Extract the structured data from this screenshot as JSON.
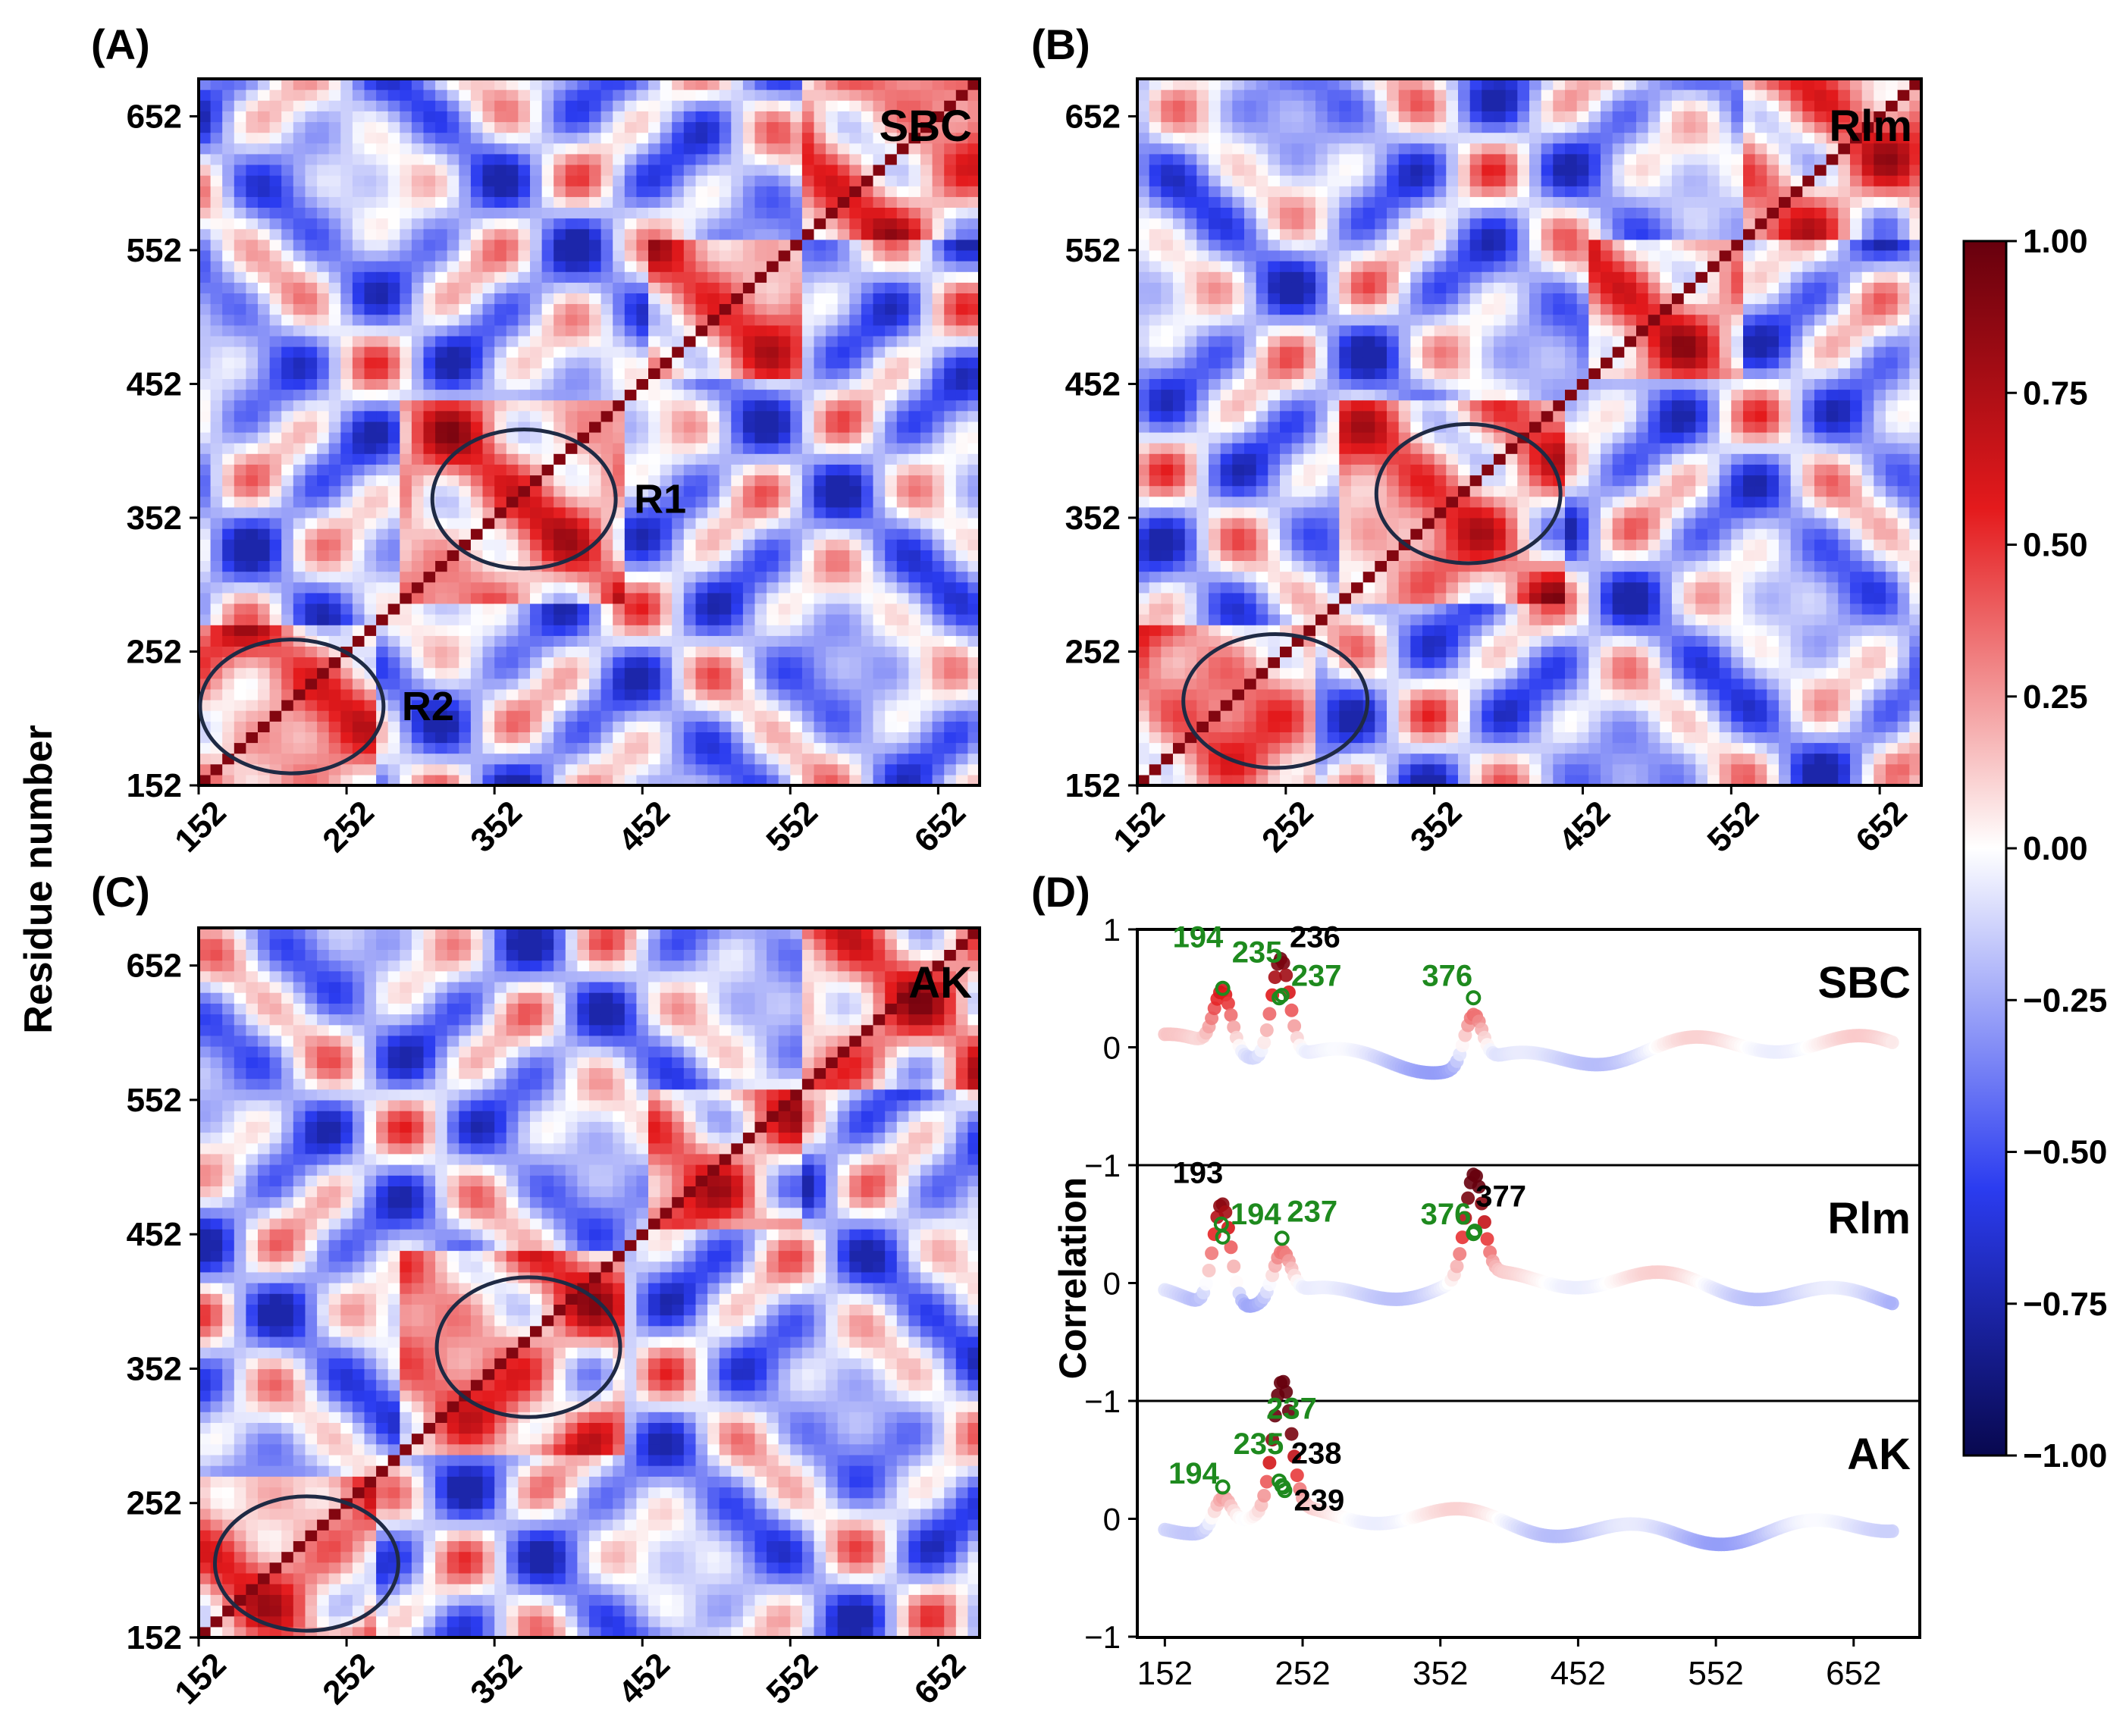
{
  "figure": {
    "y_axis_label": "Residue number",
    "d_axis_label": "Correlation",
    "colorbar": {
      "ticks": [
        "1.00",
        "0.75",
        "0.50",
        "0.25",
        "0.00",
        "−0.25",
        "−0.50",
        "−0.75",
        "−1.00"
      ],
      "colors": {
        "max": "#67000d",
        "pos": "#e41a1c",
        "zero": "#ffffff",
        "neg": "#2b3cf0",
        "min": "#08084f"
      }
    }
  },
  "chart_data": [
    {
      "panel": "(A)",
      "type": "heatmap",
      "title": "SBC",
      "ticks": [
        "152",
        "252",
        "352",
        "452",
        "552",
        "652"
      ],
      "range": [
        152,
        680
      ],
      "clim": [
        -1,
        1
      ],
      "regions": [
        {
          "label": "R1",
          "center": [
            372,
            366
          ],
          "rx": 62,
          "ry": 52
        },
        {
          "label": "R2",
          "center": [
            215,
            211
          ],
          "rx": 62,
          "ry": 50
        }
      ]
    },
    {
      "panel": "(B)",
      "type": "heatmap",
      "title": "Rlm",
      "ticks": [
        "152",
        "252",
        "352",
        "452",
        "552",
        "652"
      ],
      "range": [
        152,
        680
      ],
      "clim": [
        -1,
        1
      ],
      "regions": [
        {
          "label": "",
          "center": [
            375,
            370
          ],
          "rx": 62,
          "ry": 52
        },
        {
          "label": "",
          "center": [
            245,
            215
          ],
          "rx": 62,
          "ry": 50
        }
      ]
    },
    {
      "panel": "(C)",
      "type": "heatmap",
      "title": "AK",
      "ticks": [
        "152",
        "252",
        "352",
        "452",
        "552",
        "652"
      ],
      "range": [
        152,
        680
      ],
      "clim": [
        -1,
        1
      ],
      "regions": [
        {
          "label": "",
          "center": [
            375,
            368
          ],
          "rx": 62,
          "ry": 52
        },
        {
          "label": "",
          "center": [
            225,
            207
          ],
          "rx": 62,
          "ry": 50
        }
      ]
    },
    {
      "panel": "(D)",
      "type": "scatter",
      "ylabel": "Correlation",
      "xticks": [
        "152",
        "252",
        "352",
        "452",
        "552",
        "652"
      ],
      "xlim": [
        132,
        700
      ],
      "ylim": [
        -1,
        1
      ],
      "yticks": [
        "1",
        "0",
        "−1"
      ],
      "rows": [
        {
          "name": "SBC",
          "peaks": [
            {
              "x": 194,
              "y": 0.5
            },
            {
              "x": 235,
              "y": 0.42
            },
            {
              "x": 237,
              "y": 0.44
            },
            {
              "x": 376,
              "y": 0.42
            }
          ],
          "labels": [
            {
              "text": "194",
              "color": "green",
              "x": 176,
              "y": 0.85
            },
            {
              "text": "235",
              "color": "green",
              "x": 219,
              "y": 0.72
            },
            {
              "text": "236",
              "color": "black",
              "x": 261,
              "y": 0.85
            },
            {
              "text": "237",
              "color": "green",
              "x": 262,
              "y": 0.52
            },
            {
              "text": "376",
              "color": "green",
              "x": 357,
              "y": 0.52
            }
          ]
        },
        {
          "name": "Rlm",
          "peaks": [
            {
              "x": 193,
              "y": 0.5
            },
            {
              "x": 194,
              "y": 0.39
            },
            {
              "x": 237,
              "y": 0.38
            },
            {
              "x": 376,
              "y": 0.42
            },
            {
              "x": 377,
              "y": 0.44
            }
          ],
          "labels": [
            {
              "text": "193",
              "color": "black",
              "x": 176,
              "y": 0.85
            },
            {
              "text": "194",
              "color": "green",
              "x": 218,
              "y": 0.5
            },
            {
              "text": "237",
              "color": "green",
              "x": 259,
              "y": 0.52
            },
            {
              "text": "376",
              "color": "green",
              "x": 356,
              "y": 0.5
            },
            {
              "text": "377",
              "color": "black",
              "x": 396,
              "y": 0.65
            }
          ]
        },
        {
          "name": "AK",
          "peaks": [
            {
              "x": 194,
              "y": 0.27
            },
            {
              "x": 235,
              "y": 0.32
            },
            {
              "x": 237,
              "y": 0.28
            },
            {
              "x": 238,
              "y": 0.27
            },
            {
              "x": 239,
              "y": 0.24
            }
          ],
          "labels": [
            {
              "text": "237",
              "color": "green",
              "x": 244,
              "y": 0.85
            },
            {
              "text": "235",
              "color": "green",
              "x": 220,
              "y": 0.55
            },
            {
              "text": "238",
              "color": "black",
              "x": 262,
              "y": 0.47
            },
            {
              "text": "194",
              "color": "green",
              "x": 173,
              "y": 0.3
            },
            {
              "text": "239",
              "color": "black",
              "x": 264,
              "y": 0.07
            }
          ]
        }
      ]
    }
  ]
}
